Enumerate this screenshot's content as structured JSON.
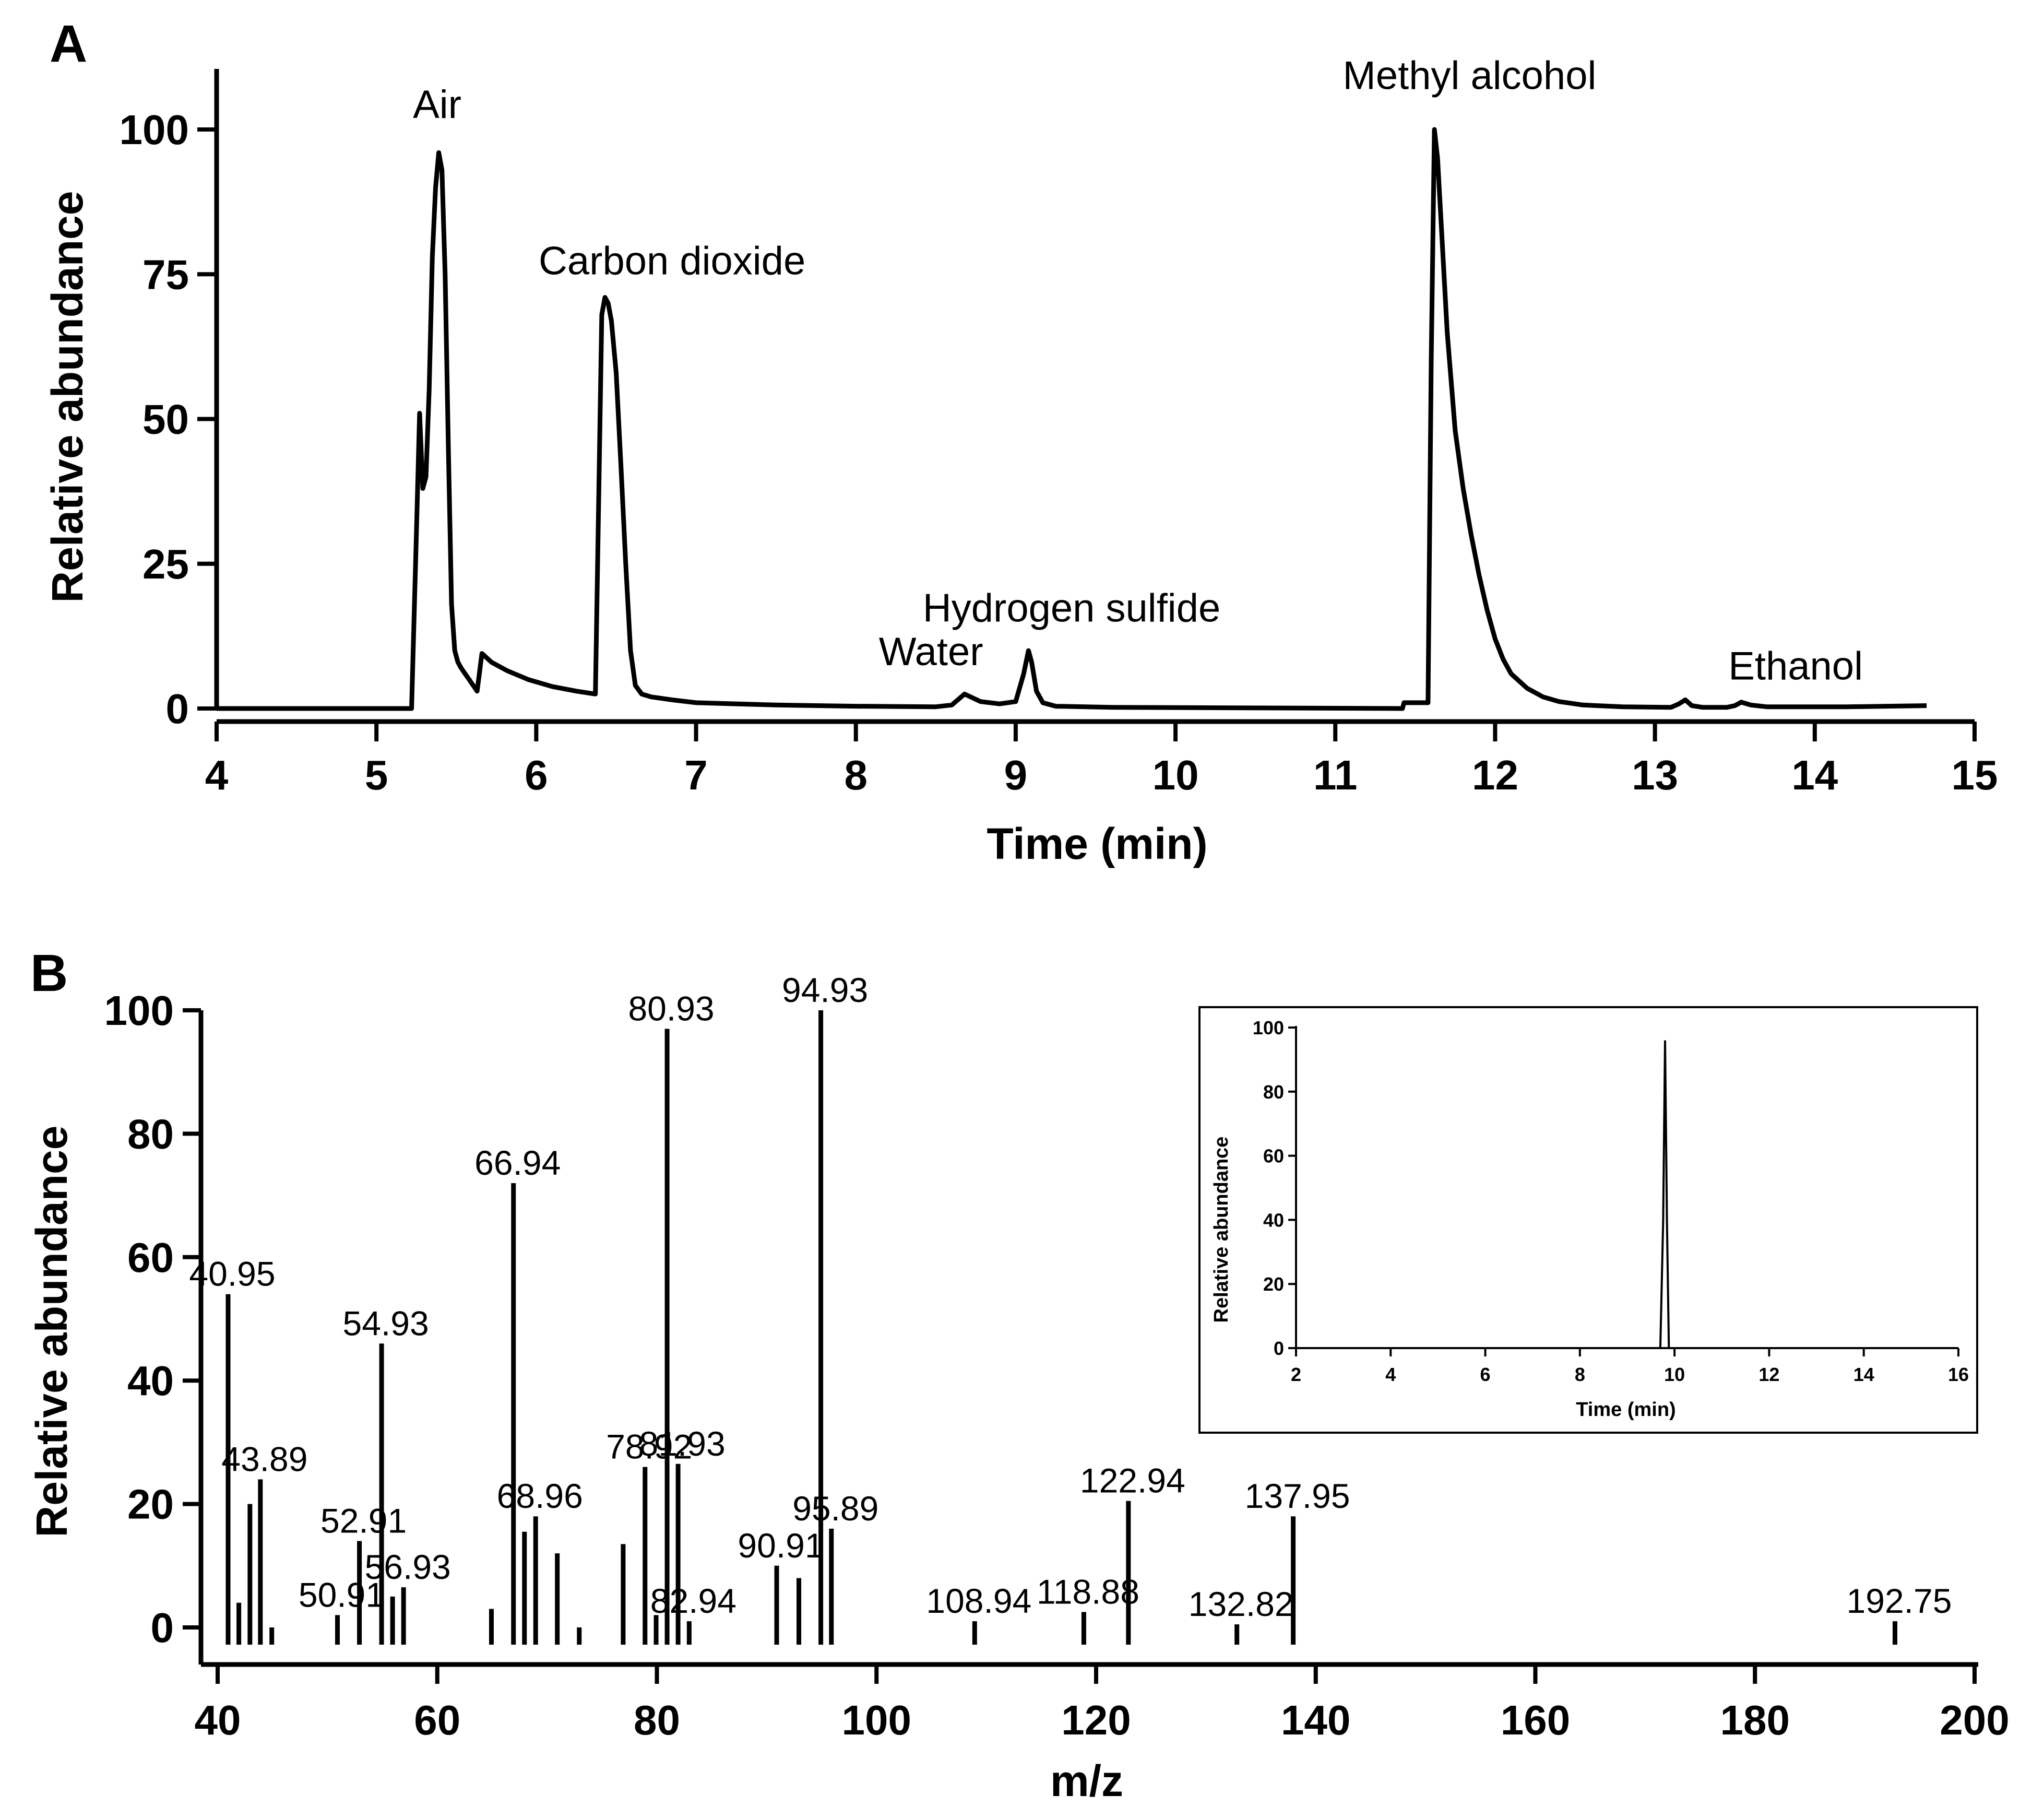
{
  "chart_data": [
    {
      "panel": "A",
      "type": "line",
      "xlabel": "Time (min)",
      "ylabel": "Relative abundance",
      "xlim": [
        4,
        15
      ],
      "ylim": [
        0,
        110
      ],
      "xticks": [
        4,
        5,
        6,
        7,
        8,
        9,
        10,
        11,
        12,
        13,
        14,
        15
      ],
      "yticks": [
        0,
        25,
        50,
        75,
        100
      ],
      "series": [
        {
          "name": "chromatogram",
          "x": [
            4.0,
            5.22,
            5.25,
            5.27,
            5.29,
            5.31,
            5.33,
            5.35,
            5.37,
            5.39,
            5.41,
            5.43,
            5.45,
            5.47,
            5.49,
            5.51,
            5.53,
            5.58,
            5.63,
            5.66,
            5.72,
            5.82,
            5.95,
            6.1,
            6.25,
            6.37,
            6.39,
            6.41,
            6.43,
            6.45,
            6.47,
            6.5,
            6.53,
            6.56,
            6.59,
            6.62,
            6.66,
            6.72,
            6.85,
            7.0,
            7.5,
            8.0,
            8.5,
            8.6,
            8.68,
            8.78,
            8.9,
            9.0,
            9.05,
            9.08,
            9.1,
            9.13,
            9.17,
            9.25,
            9.6,
            10.5,
            11.42,
            11.43,
            11.58,
            11.6,
            11.62,
            11.64,
            11.67,
            11.7,
            11.75,
            11.8,
            11.85,
            11.9,
            11.95,
            12.0,
            12.05,
            12.1,
            12.2,
            12.3,
            12.4,
            12.55,
            12.8,
            13.1,
            13.15,
            13.19,
            13.23,
            13.3,
            13.45,
            13.5,
            13.54,
            13.6,
            13.7,
            14.2,
            14.7
          ],
          "y": [
            0,
            0,
            30,
            51,
            38,
            40,
            55,
            78,
            90,
            96,
            93,
            75,
            45,
            18,
            10,
            8,
            7,
            5,
            3,
            9.5,
            8,
            6.5,
            5,
            3.8,
            3,
            2.5,
            35,
            68,
            71,
            70,
            67,
            58,
            42,
            25,
            10,
            4,
            2.5,
            2,
            1.5,
            1,
            0.6,
            0.4,
            0.3,
            0.6,
            2.5,
            1.2,
            0.8,
            1.2,
            6,
            10,
            8,
            3,
            1,
            0.4,
            0.2,
            0.1,
            0,
            1,
            1,
            60,
            100,
            95,
            80,
            65,
            48,
            38,
            30,
            23,
            17,
            12,
            8.5,
            6,
            3.5,
            2,
            1.2,
            0.6,
            0.3,
            0.2,
            0.8,
            1.5,
            0.5,
            0.2,
            0.2,
            0.5,
            1.1,
            0.6,
            0.3,
            0.3,
            0.5
          ]
        }
      ],
      "annotations": [
        {
          "text": "Air",
          "x": 5.38,
          "y": 102
        },
        {
          "text": "Carbon dioxide",
          "x": 6.85,
          "y": 75
        },
        {
          "text": "Hydrogen sulfide",
          "x": 9.35,
          "y": 15
        },
        {
          "text": "Water",
          "x": 8.47,
          "y": 7.5
        },
        {
          "text": "Methyl alcohol",
          "x": 11.84,
          "y": 107
        },
        {
          "text": "Ethanol",
          "x": 13.88,
          "y": 5
        }
      ]
    },
    {
      "panel": "B",
      "type": "bar",
      "xlabel": "m/z",
      "ylabel": "Relative abundance",
      "xlim": [
        38,
        200
      ],
      "ylim": [
        -5,
        100
      ],
      "xticks": [
        40,
        60,
        80,
        100,
        120,
        140,
        160,
        180,
        200
      ],
      "yticks": [
        0,
        20,
        40,
        60,
        80,
        100
      ],
      "x": [
        40.95,
        41.93,
        42.94,
        43.89,
        44.93,
        50.91,
        52.91,
        54.93,
        55.93,
        56.93,
        64.93,
        66.94,
        67.94,
        68.96,
        70.93,
        72.93,
        76.93,
        78.92,
        79.93,
        80.93,
        81.93,
        82.94,
        90.91,
        92.93,
        94.93,
        95.89,
        108.94,
        118.88,
        122.94,
        132.82,
        137.95,
        192.75
      ],
      "values": [
        54,
        4,
        20,
        24,
        0,
        2,
        14,
        46,
        5,
        6.5,
        3,
        72,
        15.5,
        18,
        12,
        0,
        13.5,
        26,
        2,
        97,
        26.5,
        1,
        10,
        8,
        100,
        16,
        1,
        2.5,
        20.5,
        0.5,
        18,
        1
      ],
      "labels": [
        {
          "text": "40.95",
          "x": 40.95,
          "y": 54
        },
        {
          "text": "43.89",
          "x": 43.89,
          "y": 24
        },
        {
          "text": "50.91",
          "x": 50.91,
          "y": 2
        },
        {
          "text": "52.91",
          "x": 52.91,
          "y": 14
        },
        {
          "text": "54.93",
          "x": 54.93,
          "y": 46
        },
        {
          "text": "56.93",
          "x": 56.93,
          "y": 6.5
        },
        {
          "text": "66.94",
          "x": 66.94,
          "y": 72
        },
        {
          "text": "68.96",
          "x": 68.96,
          "y": 18
        },
        {
          "text": "78.92",
          "x": 78.92,
          "y": 26
        },
        {
          "text": "80.93",
          "x": 80.93,
          "y": 97
        },
        {
          "text": "81.93",
          "x": 81.93,
          "y": 26.5
        },
        {
          "text": "82.94",
          "x": 82.94,
          "y": 1
        },
        {
          "text": "90.91",
          "x": 90.91,
          "y": 10
        },
        {
          "text": "94.93",
          "x": 94.93,
          "y": 100
        },
        {
          "text": "95.89",
          "x": 95.89,
          "y": 16
        },
        {
          "text": "108.94",
          "x": 108.94,
          "y": 1
        },
        {
          "text": "118.88",
          "x": 118.88,
          "y": 2.5
        },
        {
          "text": "122.94",
          "x": 122.94,
          "y": 20.5
        },
        {
          "text": "132.82",
          "x": 132.82,
          "y": 0.5
        },
        {
          "text": "137.95",
          "x": 137.95,
          "y": 18
        },
        {
          "text": "192.75",
          "x": 192.75,
          "y": 1
        }
      ]
    },
    {
      "panel": "B-inset",
      "type": "line",
      "xlabel": "Time (min)",
      "ylabel": "Relative abundance",
      "xlim": [
        2,
        16
      ],
      "ylim": [
        0,
        100
      ],
      "xticks": [
        2,
        4,
        6,
        8,
        10,
        12,
        14,
        16
      ],
      "yticks": [
        0,
        20,
        40,
        60,
        80,
        100
      ],
      "series": [
        {
          "name": "inset chromatogram",
          "x": [
            2.0,
            9.7,
            9.76,
            9.8,
            9.84,
            9.88,
            16.0
          ],
          "y": [
            0,
            0,
            40,
            96,
            40,
            0,
            0
          ]
        }
      ]
    }
  ],
  "panel_letters": {
    "a": "A",
    "b": "B"
  },
  "colors": {
    "ink": "#000000",
    "background": "#ffffff"
  }
}
